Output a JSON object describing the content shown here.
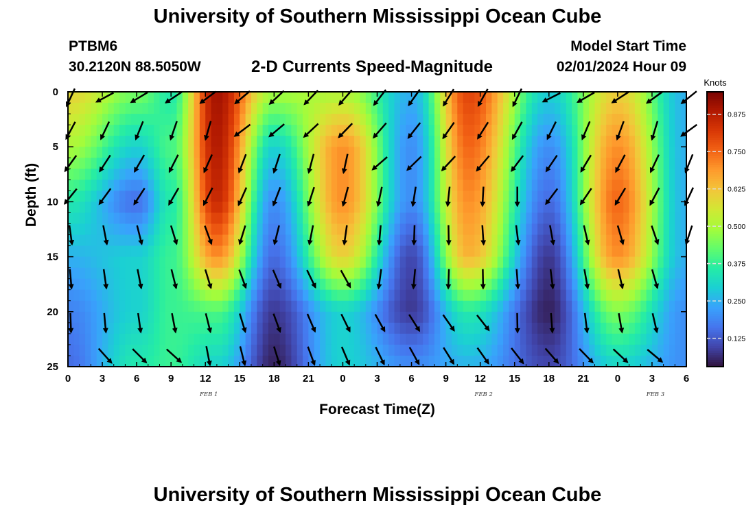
{
  "header": {
    "title": "University of Southern Mississippi Ocean Cube",
    "station": "PTBM6",
    "coordinates": "30.2120N  88.5050W",
    "plot_title": "2-D Currents Speed-Magnitude",
    "model_label": "Model Start Time",
    "model_time": "02/01/2024 Hour 09"
  },
  "footer": {
    "title": "University of Southern Mississippi Ocean Cube"
  },
  "chart_data": {
    "type": "heatmap",
    "title": "2-D Currents Speed-Magnitude",
    "xlabel": "Forecast Time(Z)",
    "ylabel": "Depth (ft)",
    "x_ticks": [
      "0",
      "3",
      "6",
      "9",
      "12",
      "15",
      "18",
      "21",
      "0",
      "3",
      "6",
      "9",
      "12",
      "15",
      "18",
      "21",
      "0",
      "3",
      "6"
    ],
    "x_hours_from_start": [
      0,
      54
    ],
    "y_ticks": [
      "0",
      "5",
      "10",
      "15",
      "20",
      "25"
    ],
    "ylim": [
      0,
      25
    ],
    "date_labels": [
      {
        "label": "FEB 1",
        "hour": 12
      },
      {
        "label": "FEB 2",
        "hour": 36
      },
      {
        "label": "FEB 3",
        "hour": 51
      }
    ],
    "colorbar": {
      "unit": "Knots",
      "ticks": [
        "0.875",
        "0.750",
        "0.625",
        "0.500",
        "0.375",
        "0.250",
        "0.125"
      ],
      "tick_values": [
        0.875,
        0.75,
        0.625,
        0.5,
        0.375,
        0.25,
        0.125
      ],
      "range": [
        0.03,
        0.95
      ],
      "colors": [
        "#30123b",
        "#4145ab",
        "#4675ed",
        "#39a2fc",
        "#1bcfd4",
        "#24eca6",
        "#61fc6c",
        "#a4fc3b",
        "#d1e834",
        "#f3c63a",
        "#fe9b2d",
        "#f36315",
        "#d93806",
        "#b11901",
        "#7a0402"
      ]
    },
    "speed_field": {
      "profiles": [
        {
          "hour": 0,
          "speed_by_depth": [
            0.6,
            0.5,
            0.35,
            0.25,
            0.18,
            0.15
          ]
        },
        {
          "hour": 6,
          "speed_by_depth": [
            0.45,
            0.3,
            0.15,
            0.3,
            0.3,
            0.35
          ]
        },
        {
          "hour": 9,
          "speed_by_depth": [
            0.35,
            0.4,
            0.35,
            0.38,
            0.38,
            0.38
          ]
        },
        {
          "hour": 13,
          "speed_by_depth": [
            0.9,
            0.88,
            0.85,
            0.7,
            0.4,
            0.3
          ]
        },
        {
          "hour": 18,
          "speed_by_depth": [
            0.5,
            0.3,
            0.2,
            0.15,
            0.08,
            0.05
          ]
        },
        {
          "hour": 24,
          "speed_by_depth": [
            0.5,
            0.7,
            0.7,
            0.6,
            0.3,
            0.3
          ]
        },
        {
          "hour": 30,
          "speed_by_depth": [
            0.25,
            0.2,
            0.2,
            0.1,
            0.08,
            0.2
          ]
        },
        {
          "hour": 35,
          "speed_by_depth": [
            0.8,
            0.75,
            0.7,
            0.65,
            0.35,
            0.25
          ]
        },
        {
          "hour": 42,
          "speed_by_depth": [
            0.3,
            0.2,
            0.15,
            0.08,
            0.05,
            0.1
          ]
        },
        {
          "hour": 48,
          "speed_by_depth": [
            0.6,
            0.7,
            0.75,
            0.7,
            0.45,
            0.3
          ]
        },
        {
          "hour": 54,
          "speed_by_depth": [
            0.25,
            0.25,
            0.25,
            0.25,
            0.2,
            0.2
          ]
        }
      ],
      "depths_ft": [
        0,
        5,
        10,
        15,
        20,
        25
      ]
    },
    "vectors": {
      "hours": [
        0,
        3,
        6,
        9,
        12,
        15,
        18,
        21,
        24,
        27,
        30,
        33,
        36,
        39,
        42,
        45,
        48,
        51,
        54
      ],
      "depths_ft": [
        0.5,
        3.5,
        6.5,
        9.5,
        13,
        17,
        21,
        24
      ],
      "direction_by_depth_deg": [
        225,
        215,
        210,
        200,
        180,
        170,
        160,
        150
      ]
    }
  }
}
